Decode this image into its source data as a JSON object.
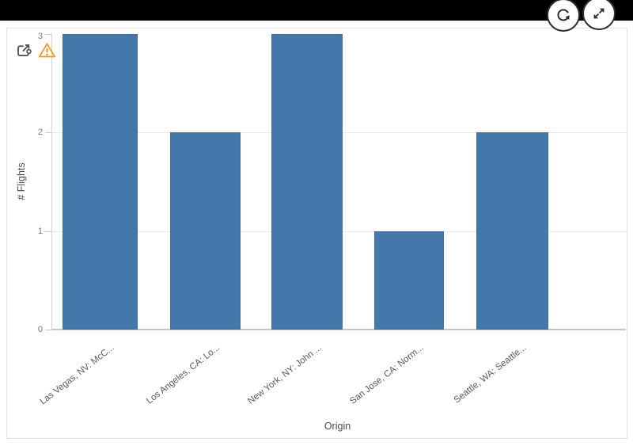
{
  "app": {
    "toolbar": {
      "refresh_button": {
        "icon": "refresh-icon"
      },
      "expand_button": {
        "icon": "expand-icon"
      }
    },
    "indicators": {
      "share": {
        "icon": "share-link-icon",
        "color": "#4a4a4a"
      },
      "warning": {
        "icon": "warning-triangle-icon",
        "color": "#f8981d"
      }
    }
  },
  "chart_data": {
    "type": "bar",
    "title": "",
    "xlabel": "Origin",
    "ylabel": "# Flights",
    "categories": [
      "Las Vegas, NV: McC...",
      "Los Angeles, CA: Lo...",
      "New York, NY: John ...",
      "San Jose, CA: Norm...",
      "Seattle, WA: Seattle..."
    ],
    "values": [
      3,
      2,
      3,
      1,
      2
    ],
    "yticks": [
      0,
      1,
      2,
      3
    ],
    "ylim": [
      0,
      3
    ],
    "grid": "horizontal",
    "legend": "none",
    "bar_color": "#4477aa",
    "gridline_color": "#e7e7e7",
    "axis_text_color": "#7b7b7b"
  }
}
